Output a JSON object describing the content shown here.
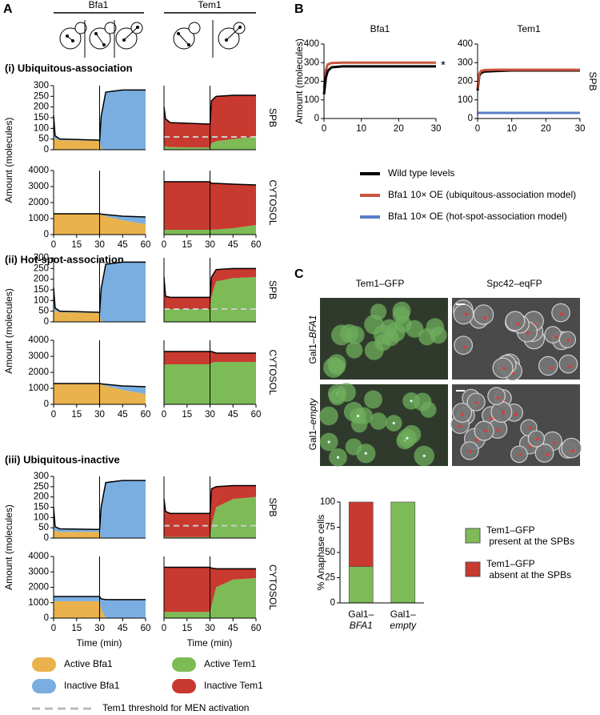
{
  "panel_labels": [
    "A",
    "B",
    "C"
  ],
  "panel_a": {
    "column_titles": [
      "Bfa1",
      "Tem1"
    ],
    "sections": [
      "(i) Ubiquitous-association",
      "(ii) Hot-spot-association",
      "(iii) Ubiquitous-inactive"
    ],
    "row_labels": [
      "SPB",
      "CYTOSOL"
    ],
    "y_label": "Amount (molecules)",
    "x_label": "Time (min)",
    "legend": [
      {
        "label": "Active Bfa1",
        "color": "#e9b24c"
      },
      {
        "label": "Inactive Bfa1",
        "color": "#7aaee0"
      },
      {
        "label": "Active Tem1",
        "color": "#7dbb57"
      },
      {
        "label": "Inactive Tem1",
        "color": "#c8392f"
      }
    ],
    "threshold_label": "Tem1 threshold for MEN activation"
  },
  "panel_c": {
    "image_columns": [
      "Tem1–GFP",
      "Spc42–eqFP"
    ],
    "image_rows": [
      [
        "Gal1–",
        "BFA1"
      ],
      [
        "Gal1–",
        "empty"
      ]
    ]
  },
  "chart_data": [
    {
      "type": "area",
      "x": [
        0,
        1,
        4,
        29,
        30,
        31,
        34,
        45,
        60
      ],
      "xlim": [
        0,
        60
      ],
      "ylim": [
        0,
        300
      ],
      "yticks": [
        0,
        50,
        100,
        150,
        200,
        250,
        300
      ],
      "vline": 30,
      "series": [
        {
          "color": "#e9b24c",
          "values": [
            60,
            50,
            45,
            42,
            40,
            5,
            0,
            0,
            0
          ]
        },
        {
          "color": "#7aaee0",
          "values": [
            100,
            15,
            5,
            3,
            3,
            150,
            270,
            280,
            280
          ]
        }
      ]
    },
    {
      "type": "area",
      "x": [
        0,
        1,
        4,
        29,
        30,
        31,
        34,
        45,
        60
      ],
      "xlim": [
        0,
        60
      ],
      "ylim": [
        0,
        4000
      ],
      "yticks": [
        0,
        1000,
        2000,
        3000,
        4000
      ],
      "xticks": [
        0,
        15,
        30,
        45,
        60
      ],
      "vline": 30,
      "series": [
        {
          "color": "#e9b24c",
          "values": [
            1300,
            1300,
            1300,
            1300,
            1300,
            1250,
            1150,
            900,
            650
          ]
        },
        {
          "color": "#7aaee0",
          "values": [
            0,
            0,
            0,
            0,
            0,
            30,
            100,
            250,
            450
          ]
        }
      ]
    },
    {
      "type": "area",
      "x": [
        0,
        1,
        4,
        29,
        30,
        31,
        34,
        45,
        60
      ],
      "xlim": [
        0,
        60
      ],
      "ylim": [
        0,
        300
      ],
      "vline": 30,
      "threshold": 60,
      "series": [
        {
          "color": "#7dbb57",
          "values": [
            20,
            15,
            12,
            10,
            10,
            30,
            40,
            50,
            60
          ]
        },
        {
          "color": "#c8392f",
          "values": [
            180,
            130,
            115,
            110,
            110,
            200,
            210,
            205,
            195
          ]
        }
      ]
    },
    {
      "type": "area",
      "x": [
        0,
        1,
        4,
        29,
        30,
        31,
        34,
        45,
        60
      ],
      "xlim": [
        0,
        60
      ],
      "ylim": [
        0,
        4000
      ],
      "xticks": [
        0,
        15,
        30,
        45,
        60
      ],
      "vline": 30,
      "series": [
        {
          "color": "#7dbb57",
          "values": [
            300,
            300,
            300,
            300,
            300,
            300,
            320,
            400,
            600
          ]
        },
        {
          "color": "#c8392f",
          "values": [
            3000,
            3000,
            3000,
            3000,
            3000,
            2900,
            2880,
            2750,
            2500
          ]
        }
      ]
    },
    {
      "type": "area",
      "x": [
        0,
        1,
        4,
        29,
        30,
        31,
        34,
        45,
        60
      ],
      "xlim": [
        0,
        60
      ],
      "ylim": [
        0,
        300
      ],
      "yticks": [
        0,
        50,
        100,
        150,
        200,
        250,
        300
      ],
      "vline": 30,
      "series": [
        {
          "color": "#e9b24c",
          "values": [
            60,
            50,
            45,
            42,
            40,
            5,
            0,
            0,
            0
          ]
        },
        {
          "color": "#7aaee0",
          "values": [
            100,
            15,
            5,
            3,
            3,
            150,
            270,
            280,
            280
          ]
        }
      ]
    },
    {
      "type": "area",
      "x": [
        0,
        1,
        4,
        29,
        30,
        31,
        34,
        45,
        60
      ],
      "xlim": [
        0,
        60
      ],
      "ylim": [
        0,
        4000
      ],
      "yticks": [
        0,
        1000,
        2000,
        3000,
        4000
      ],
      "xticks": [
        0,
        15,
        30,
        45,
        60
      ],
      "vline": 30,
      "series": [
        {
          "color": "#e9b24c",
          "values": [
            1300,
            1300,
            1300,
            1300,
            1300,
            1250,
            1150,
            900,
            650
          ]
        },
        {
          "color": "#7aaee0",
          "values": [
            0,
            0,
            0,
            0,
            0,
            30,
            100,
            250,
            450
          ]
        }
      ]
    },
    {
      "type": "area",
      "x": [
        0,
        1,
        4,
        29,
        30,
        31,
        34,
        45,
        60
      ],
      "xlim": [
        0,
        60
      ],
      "ylim": [
        0,
        300
      ],
      "vline": 30,
      "threshold": 60,
      "series": [
        {
          "color": "#7dbb57",
          "values": [
            60,
            60,
            60,
            60,
            60,
            120,
            190,
            205,
            210
          ]
        },
        {
          "color": "#c8392f",
          "values": [
            150,
            60,
            55,
            55,
            55,
            90,
            55,
            45,
            40
          ]
        }
      ]
    },
    {
      "type": "area",
      "x": [
        0,
        1,
        4,
        29,
        30,
        31,
        34,
        45,
        60
      ],
      "xlim": [
        0,
        60
      ],
      "ylim": [
        0,
        4000
      ],
      "xticks": [
        0,
        15,
        30,
        45,
        60
      ],
      "vline": 30,
      "series": [
        {
          "color": "#7dbb57",
          "values": [
            2400,
            2500,
            2500,
            2500,
            2500,
            2600,
            2650,
            2650,
            2650
          ]
        },
        {
          "color": "#c8392f",
          "values": [
            900,
            800,
            800,
            800,
            800,
            700,
            550,
            550,
            550
          ]
        }
      ]
    },
    {
      "type": "area",
      "x": [
        0,
        1,
        4,
        29,
        30,
        31,
        34,
        45,
        60
      ],
      "xlim": [
        0,
        60
      ],
      "ylim": [
        0,
        300
      ],
      "yticks": [
        0,
        50,
        100,
        150,
        200,
        250,
        300
      ],
      "vline": 30,
      "series": [
        {
          "color": "#e9b24c",
          "values": [
            40,
            35,
            30,
            30,
            30,
            0,
            0,
            0,
            0
          ]
        },
        {
          "color": "#7aaee0",
          "values": [
            110,
            20,
            15,
            12,
            12,
            150,
            270,
            280,
            280
          ]
        }
      ]
    },
    {
      "type": "area",
      "x": [
        0,
        1,
        4,
        29,
        30,
        31,
        34,
        45,
        60
      ],
      "xlim": [
        0,
        60
      ],
      "ylim": [
        0,
        4000
      ],
      "yticks": [
        0,
        1000,
        2000,
        3000,
        4000
      ],
      "xticks": [
        0,
        15,
        30,
        45,
        60
      ],
      "vline": 30,
      "series": [
        {
          "color": "#e9b24c",
          "values": [
            1100,
            1100,
            1100,
            1100,
            1100,
            600,
            0,
            0,
            0
          ]
        },
        {
          "color": "#7aaee0",
          "values": [
            300,
            300,
            300,
            300,
            300,
            650,
            1200,
            1200,
            1200
          ]
        }
      ]
    },
    {
      "type": "area",
      "x": [
        0,
        1,
        4,
        29,
        30,
        31,
        34,
        45,
        60
      ],
      "xlim": [
        0,
        60
      ],
      "ylim": [
        0,
        300
      ],
      "vline": 30,
      "threshold": 60,
      "series": [
        {
          "color": "#7dbb57",
          "values": [
            10,
            5,
            5,
            5,
            5,
            60,
            150,
            190,
            200
          ]
        },
        {
          "color": "#c8392f",
          "values": [
            180,
            125,
            115,
            115,
            115,
            180,
            100,
            65,
            55
          ]
        }
      ]
    },
    {
      "type": "area",
      "x": [
        0,
        1,
        4,
        29,
        30,
        31,
        34,
        45,
        60
      ],
      "xlim": [
        0,
        60
      ],
      "ylim": [
        0,
        4000
      ],
      "xticks": [
        0,
        15,
        30,
        45,
        60
      ],
      "vline": 30,
      "series": [
        {
          "color": "#7dbb57",
          "values": [
            400,
            400,
            400,
            400,
            400,
            800,
            2000,
            2500,
            2600
          ]
        },
        {
          "color": "#c8392f",
          "values": [
            2900,
            2900,
            2900,
            2900,
            2900,
            2450,
            1200,
            700,
            600
          ]
        }
      ]
    },
    {
      "type": "line",
      "title": "Bfa1",
      "y_label": "Amount (molecules)",
      "annotation": "*",
      "x": [
        0,
        0.5,
        1,
        2,
        5,
        10,
        20,
        30
      ],
      "xlim": [
        0,
        30
      ],
      "ylim": [
        0,
        400
      ],
      "xticks": [
        0,
        10,
        20,
        30
      ],
      "yticks": [
        0,
        100,
        200,
        300,
        400
      ],
      "series": [
        {
          "color": "#c8553b",
          "values": [
            160,
            260,
            290,
            298,
            300,
            300,
            300,
            300
          ]
        },
        {
          "color": "#000000",
          "values": [
            130,
            220,
            255,
            275,
            280,
            280,
            280,
            280
          ]
        }
      ]
    },
    {
      "type": "line",
      "title": "Tem1",
      "side_label": "SPB",
      "x": [
        0,
        0.5,
        1,
        2,
        5,
        10,
        20,
        30
      ],
      "xlim": [
        0,
        30
      ],
      "ylim": [
        0,
        400
      ],
      "xticks": [
        0,
        10,
        20,
        30
      ],
      "yticks": [
        0,
        100,
        200,
        300,
        400
      ],
      "series": [
        {
          "name": "Wild type levels",
          "color": "#000000",
          "values": [
            150,
            230,
            245,
            252,
            255,
            258,
            258,
            258
          ]
        },
        {
          "name": "Bfa1 10× OE (ubiquitous-association model)",
          "color": "#c8553b",
          "values": [
            160,
            240,
            255,
            260,
            262,
            262,
            262,
            262
          ]
        },
        {
          "name": "Bfa1 10× OE (hot-spot-association model)",
          "color": "#5a7ccc",
          "values": [
            30,
            30,
            30,
            30,
            30,
            30,
            30,
            30
          ]
        }
      ]
    },
    {
      "type": "stacked_bar",
      "y_label": "% Anaphase cells",
      "categories": [
        [
          "Gal1–",
          "BFA1"
        ],
        [
          "Gal1–",
          "empty"
        ]
      ],
      "ylim": [
        0,
        100
      ],
      "yticks": [
        0,
        25,
        50,
        75,
        100
      ],
      "series": [
        {
          "name": "Tem1–GFP present at the SPBs",
          "color": "#7dbb57",
          "values": [
            36,
            100
          ]
        },
        {
          "name": "Tem1–GFP absent at the SPBs",
          "color": "#c8392f",
          "values": [
            64,
            0
          ]
        }
      ]
    }
  ]
}
